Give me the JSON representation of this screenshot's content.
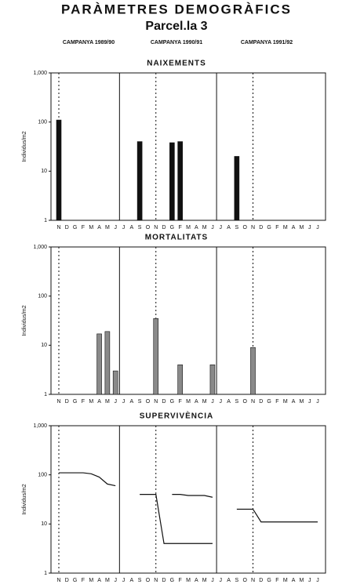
{
  "header": {
    "title": "PARÀMETRES DEMOGRÀFICS",
    "subtitle": "Parcel.la 3",
    "campaigns": [
      "CAMPANYA 1989/90",
      "CAMPANYA 1990/91",
      "CAMPANYA 1991/92"
    ]
  },
  "chart_data": [
    {
      "type": "bar",
      "title": "NAIXEMENTS",
      "y_label": "Individus/m2",
      "log": true,
      "color": "#111111",
      "categories": [
        "N",
        "D",
        "G",
        "F",
        "M",
        "A",
        "M",
        "J",
        "J",
        "A",
        "S",
        "O",
        "N",
        "D",
        "G",
        "F",
        "M",
        "A",
        "M",
        "J",
        "J",
        "A",
        "S",
        "O",
        "N",
        "D",
        "G",
        "F",
        "M",
        "A",
        "M",
        "J",
        "J"
      ],
      "values": [
        110,
        null,
        null,
        null,
        null,
        null,
        null,
        null,
        null,
        null,
        40,
        null,
        null,
        null,
        38,
        40,
        null,
        null,
        null,
        null,
        null,
        null,
        20,
        null,
        null,
        null,
        null,
        null,
        null,
        null,
        null,
        null,
        null
      ],
      "ylim": [
        1,
        1000
      ],
      "yticks": [
        1,
        10,
        100,
        {
          "value": 1000,
          "label": "1,000"
        }
      ]
    },
    {
      "type": "bar",
      "title": "MORTALITATS",
      "y_label": "Individus/m2",
      "log": true,
      "color": "#8a8a8a",
      "categories": [
        "N",
        "D",
        "G",
        "F",
        "M",
        "A",
        "M",
        "J",
        "J",
        "A",
        "S",
        "O",
        "N",
        "D",
        "G",
        "F",
        "M",
        "A",
        "M",
        "J",
        "J",
        "A",
        "S",
        "O",
        "N",
        "D",
        "G",
        "F",
        "M",
        "A",
        "M",
        "J",
        "J"
      ],
      "values": [
        null,
        null,
        null,
        null,
        null,
        17,
        19,
        3,
        null,
        null,
        null,
        null,
        35,
        null,
        null,
        4,
        null,
        null,
        null,
        4,
        null,
        null,
        null,
        null,
        9,
        null,
        null,
        null,
        null,
        null,
        null,
        null,
        null
      ],
      "ylim": [
        1,
        1000
      ],
      "yticks": [
        1,
        10,
        100,
        {
          "value": 1000,
          "label": "1,000"
        }
      ]
    },
    {
      "type": "line",
      "title": "SUPERVIVÈNCIA",
      "y_label": "Individus/m2",
      "log": true,
      "categories": [
        "N",
        "D",
        "G",
        "F",
        "M",
        "A",
        "M",
        "J",
        "J",
        "A",
        "S",
        "O",
        "N",
        "D",
        "G",
        "F",
        "M",
        "A",
        "M",
        "J",
        "J",
        "A",
        "S",
        "O",
        "N",
        "D",
        "G",
        "F",
        "M",
        "A",
        "M",
        "J",
        "J"
      ],
      "series": [
        {
          "color": "#111111",
          "values": [
            110,
            110,
            110,
            110,
            105,
            90,
            65,
            60,
            null,
            null,
            40,
            40,
            40,
            4,
            4,
            4,
            4,
            4,
            4,
            4,
            null,
            null,
            20,
            20,
            20,
            11,
            11,
            11,
            11,
            11,
            11,
            11,
            11
          ]
        },
        {
          "color": "#111111",
          "values": [
            null,
            null,
            null,
            null,
            null,
            null,
            null,
            null,
            null,
            null,
            null,
            null,
            null,
            null,
            40,
            40,
            38,
            38,
            38,
            35,
            null,
            null,
            null,
            null,
            null,
            null,
            null,
            null,
            null,
            null,
            null,
            null,
            null
          ]
        }
      ],
      "ylim": [
        1,
        1000
      ],
      "yticks": [
        1,
        10,
        100,
        {
          "value": 1000,
          "label": "1,000"
        }
      ]
    }
  ]
}
